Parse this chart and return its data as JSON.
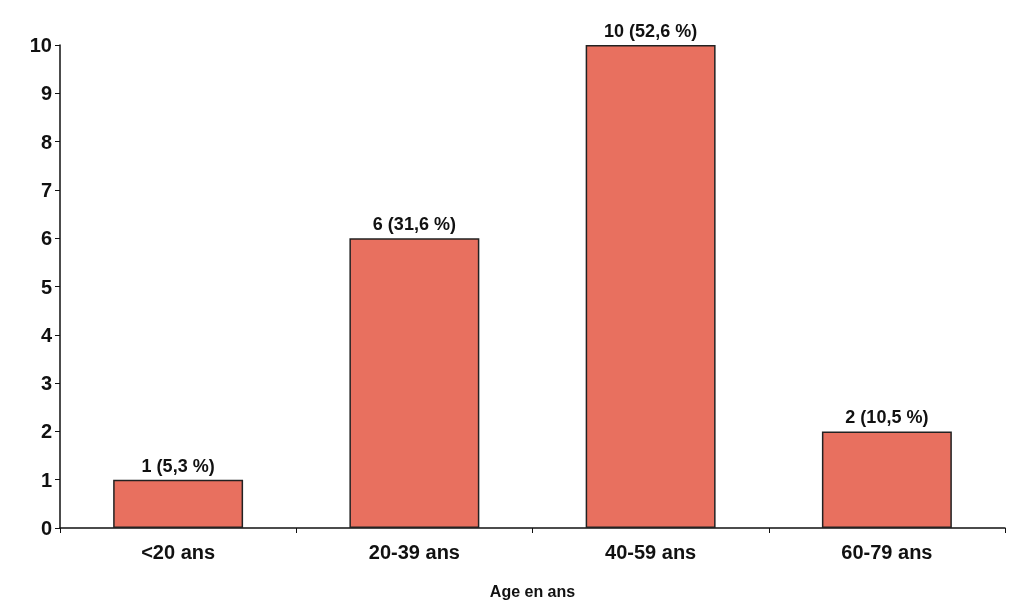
{
  "chart_data": {
    "type": "bar",
    "xlabel": "Age en ans",
    "categories": [
      "<20 ans",
      "20-39 ans",
      "40-59 ans",
      "60-79 ans"
    ],
    "values": [
      1,
      6,
      10,
      2
    ],
    "value_labels": [
      "1 (5,3 %)",
      "6 (31,6 %)",
      "10 (52,6 %)",
      "2 (10,5 %)"
    ],
    "color": "#e8705f",
    "ylim": [
      0,
      10
    ],
    "yticks": [
      0,
      1,
      2,
      3,
      4,
      5,
      6,
      7,
      8,
      9,
      10
    ],
    "grid": false
  }
}
